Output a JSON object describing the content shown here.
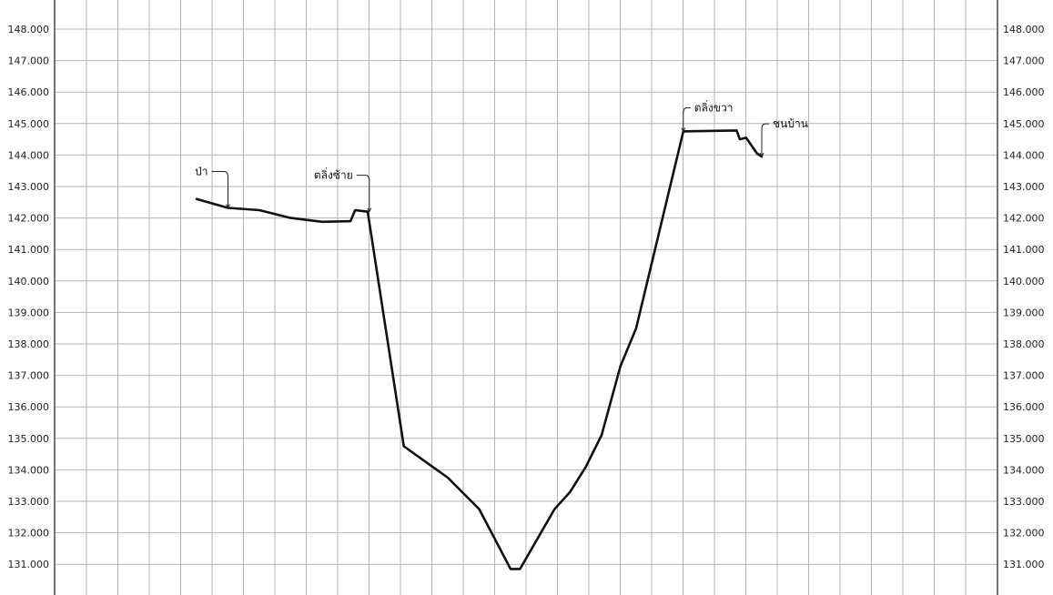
{
  "chart_data": {
    "type": "line",
    "title": "",
    "xlabel": "",
    "ylabel": "",
    "ylim": [
      130.1,
      148.9
    ],
    "yticks": [
      "131.000",
      "132.000",
      "133.000",
      "134.000",
      "135.000",
      "136.000",
      "137.000",
      "138.000",
      "139.000",
      "140.000",
      "141.000",
      "142.000",
      "143.000",
      "144.000",
      "145.000",
      "146.000",
      "147.000",
      "148.000"
    ],
    "grid": true,
    "colors": {
      "line": "#111111",
      "grid": "#b4b4b4",
      "frame": "#444444",
      "background": "#ffffff"
    },
    "series": [
      {
        "values": [
          {
            "x": 0,
            "y": 142.6
          },
          {
            "x": 10,
            "y": 142.32
          },
          {
            "x": 20,
            "y": 142.25
          },
          {
            "x": 30,
            "y": 142.0
          },
          {
            "x": 40,
            "y": 141.88
          },
          {
            "x": 49,
            "y": 141.9
          },
          {
            "x": 50.5,
            "y": 142.25
          },
          {
            "x": 54.5,
            "y": 142.2
          },
          {
            "x": 66,
            "y": 134.75
          },
          {
            "x": 80,
            "y": 133.75
          },
          {
            "x": 90,
            "y": 132.75
          },
          {
            "x": 100,
            "y": 130.85
          },
          {
            "x": 103,
            "y": 130.85
          },
          {
            "x": 114,
            "y": 132.75
          },
          {
            "x": 119,
            "y": 133.3
          },
          {
            "x": 124,
            "y": 134.1
          },
          {
            "x": 129,
            "y": 135.1
          },
          {
            "x": 135,
            "y": 137.3
          },
          {
            "x": 140,
            "y": 138.5
          },
          {
            "x": 155,
            "y": 144.75
          },
          {
            "x": 172,
            "y": 144.78
          },
          {
            "x": 173,
            "y": 144.5
          },
          {
            "x": 175,
            "y": 144.55
          },
          {
            "x": 178.5,
            "y": 144.05
          },
          {
            "x": 180,
            "y": 143.95
          }
        ]
      }
    ],
    "annotations": [
      {
        "label": "ป่า",
        "x": 10,
        "y": 142.32
      },
      {
        "label": "ตลิ่งซ้าย",
        "x": 55,
        "y": 142.2
      },
      {
        "label": "ตลิ่งขวา",
        "x": 155,
        "y": 144.75
      },
      {
        "label": "ชนบ้าน",
        "x": 180,
        "y": 143.95
      }
    ]
  }
}
